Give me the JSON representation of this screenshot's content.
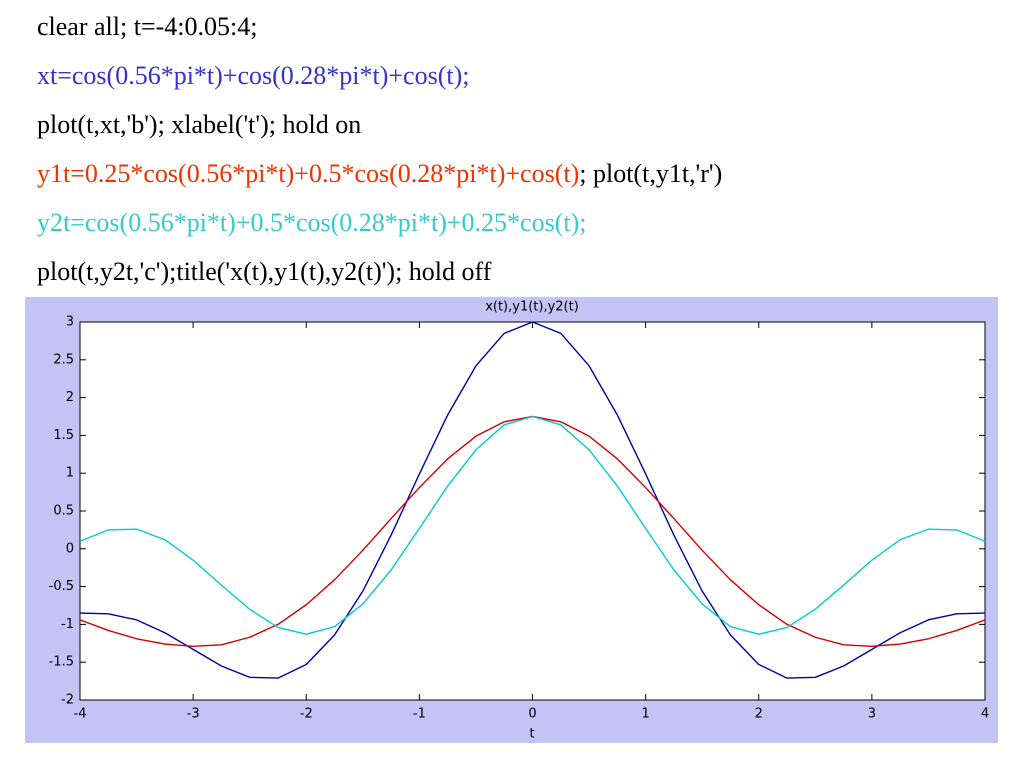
{
  "code": [
    {
      "text": "clear all; t=-4:0.05:4;",
      "color": "#000000"
    },
    {
      "text": "xt=cos(0.56*pi*t)+cos(0.28*pi*t)+cos(t);",
      "color": "#3333cc"
    },
    {
      "text": "plot(t,xt,'b'); xlabel('t'); hold on",
      "color": "#000000"
    },
    {
      "text": "y1t=0.25*cos(0.56*pi*t)+0.5*cos(0.28*pi*t)+cos(t)",
      "color": "#ee3300",
      "rest": "; plot(t,y1t,'r')"
    },
    {
      "text": "y2t=cos(0.56*pi*t)+0.5*cos(0.28*pi*t)+0.25*cos(t);",
      "color": "#33cccc"
    },
    {
      "text": "plot(t,y2t,'c');title('x(t),y1(t),y2(t)'); hold off",
      "color": "#000000"
    }
  ],
  "chart_data": {
    "type": "line",
    "title": "x(t),y1(t),y2(t)",
    "x_label": "t",
    "x": [
      -4,
      -3.75,
      -3.5,
      -3.25,
      -3,
      -2.75,
      -2.5,
      -2.25,
      -2,
      -1.75,
      -1.5,
      -1.25,
      -1,
      -0.75,
      -0.5,
      -0.25,
      0,
      0.25,
      0.5,
      0.75,
      1,
      1.25,
      1.5,
      1.75,
      2,
      2.25,
      2.5,
      2.75,
      3,
      3.25,
      3.5,
      3.75,
      4
    ],
    "series": [
      {
        "name": "xt",
        "color": "#0000a8",
        "values": [
          -0.85,
          -0.86,
          -0.94,
          -1.11,
          -1.33,
          -1.55,
          -1.7,
          -1.71,
          -1.53,
          -1.14,
          -0.56,
          0.18,
          0.99,
          1.77,
          2.42,
          2.85,
          3,
          2.85,
          2.42,
          1.77,
          0.99,
          0.18,
          -0.56,
          -1.14,
          -1.53,
          -1.71,
          -1.7,
          -1.55,
          -1.33,
          -1.11,
          -0.94,
          -0.86,
          -0.85
        ]
      },
      {
        "name": "y1t",
        "color": "#d40000",
        "values": [
          -0.94,
          -1.08,
          -1.19,
          -1.26,
          -1.29,
          -1.27,
          -1.17,
          -1.0,
          -0.74,
          -0.41,
          -0.02,
          0.4,
          0.81,
          1.19,
          1.49,
          1.68,
          1.75,
          1.68,
          1.49,
          1.19,
          0.81,
          0.4,
          -0.02,
          -0.41,
          -0.74,
          -1.0,
          -1.17,
          -1.27,
          -1.29,
          -1.26,
          -1.19,
          -1.08,
          -0.94
        ]
      },
      {
        "name": "y2t",
        "color": "#00cccc",
        "values": [
          0.1,
          0.25,
          0.26,
          0.12,
          -0.15,
          -0.48,
          -0.8,
          -1.04,
          -1.13,
          -1.03,
          -0.73,
          -0.28,
          0.27,
          0.83,
          1.31,
          1.64,
          1.75,
          1.64,
          1.31,
          0.83,
          0.27,
          -0.28,
          -0.73,
          -1.03,
          -1.13,
          -1.04,
          -0.8,
          -0.48,
          -0.15,
          0.12,
          0.26,
          0.25,
          0.1
        ]
      }
    ],
    "xlim": [
      -4,
      4
    ],
    "xticks": [
      -4,
      -3,
      -2,
      -1,
      0,
      1,
      2,
      3,
      4
    ],
    "ylim": [
      -2,
      3
    ],
    "yticks": [
      -2,
      -1.5,
      -1,
      -0.5,
      0,
      0.5,
      1,
      1.5,
      2,
      2.5,
      3
    ],
    "background": "#c3c3f5"
  }
}
